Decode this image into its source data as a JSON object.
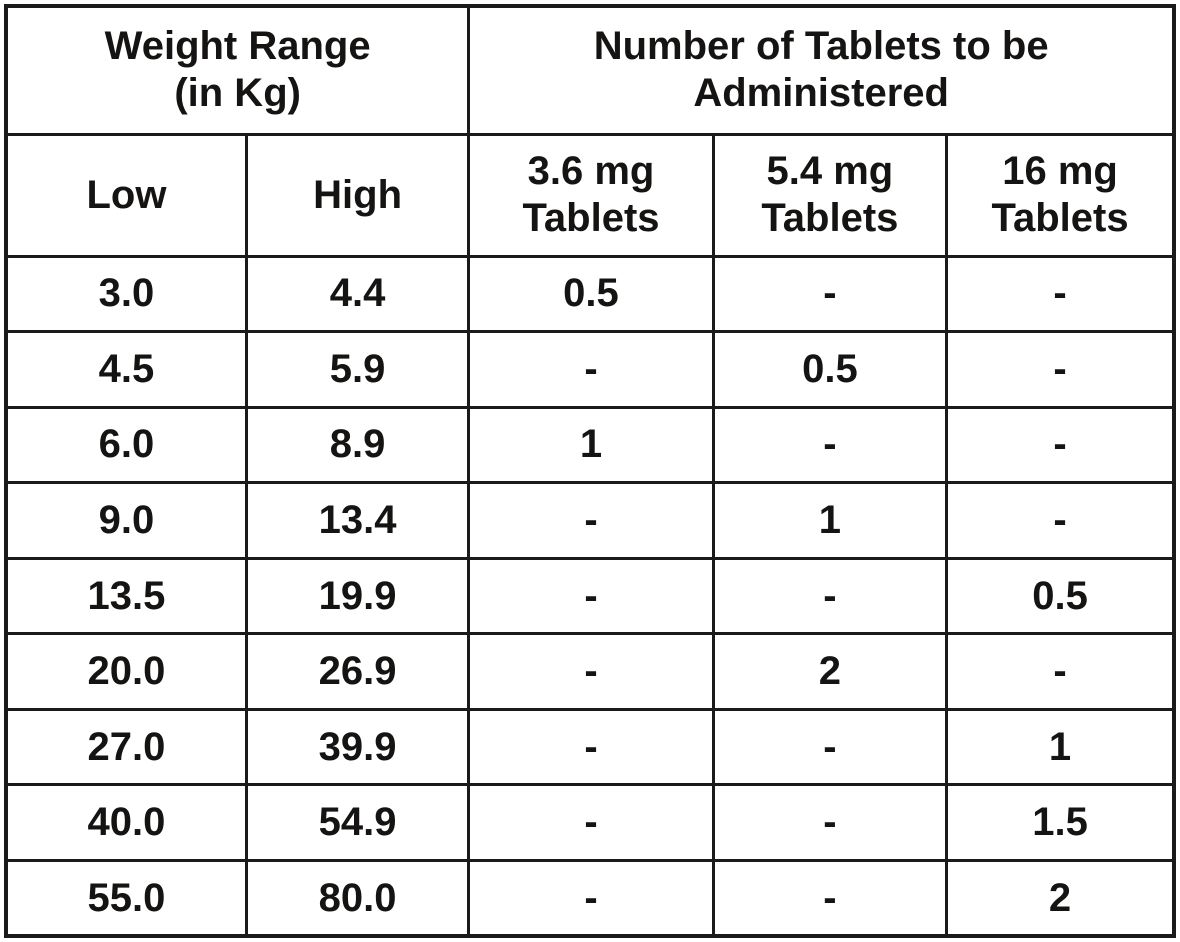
{
  "table": {
    "header_groups": [
      {
        "label": "Weight Range\n(in Kg)",
        "colspan": 2
      },
      {
        "label": "Number of Tablets to be\nAdministered",
        "colspan": 3
      }
    ],
    "columns": [
      {
        "key": "low",
        "label": "Low"
      },
      {
        "key": "high",
        "label": "High"
      },
      {
        "key": "tablets-3-6-mg",
        "label": "3.6 mg\nTablets"
      },
      {
        "key": "tablets-5-4-mg",
        "label": "5.4 mg\nTablets"
      },
      {
        "key": "tablets-16-mg",
        "label": "16 mg\nTablets"
      }
    ],
    "rows": [
      [
        "3.0",
        "4.4",
        "0.5",
        "-",
        "-"
      ],
      [
        "4.5",
        "5.9",
        "-",
        "0.5",
        "-"
      ],
      [
        "6.0",
        "8.9",
        "1",
        "-",
        "-"
      ],
      [
        "9.0",
        "13.4",
        "-",
        "1",
        "-"
      ],
      [
        "13.5",
        "19.9",
        "-",
        "-",
        "0.5"
      ],
      [
        "20.0",
        "26.9",
        "-",
        "2",
        "-"
      ],
      [
        "27.0",
        "39.9",
        "-",
        "-",
        "1"
      ],
      [
        "40.0",
        "54.9",
        "-",
        "-",
        "1.5"
      ],
      [
        "55.0",
        "80.0",
        "-",
        "-",
        "2"
      ]
    ],
    "empty_cell_marker": "-",
    "colors": {
      "border": "#1b1a19",
      "text": "#151413",
      "background": "#ffffff"
    }
  }
}
